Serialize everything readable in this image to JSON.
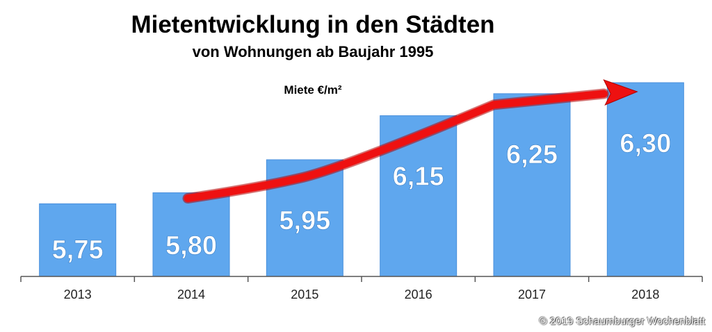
{
  "title": "Mietentwicklung in den Städten",
  "subtitle": "von Wohnungen ab Baujahr 1995",
  "unit_label": "Miete €/m²",
  "credit": "© 2019 Schaumburger Wochenblatt",
  "colors": {
    "bar": "#5fa7ee",
    "bar_edge": "#4a90dc",
    "arrow": "#ee1111",
    "label": "#ffffff",
    "axis": "#555555"
  },
  "chart_data": {
    "type": "bar",
    "categories": [
      "2013",
      "2014",
      "2015",
      "2016",
      "2017",
      "2018"
    ],
    "values": [
      5.75,
      5.8,
      5.95,
      6.15,
      6.25,
      6.3
    ],
    "value_labels": [
      "5,75",
      "5,80",
      "5,95",
      "6,15",
      "6,25",
      "6,30"
    ],
    "ylim": [
      5.42,
      6.36
    ],
    "arrow": {
      "from_category": "2014",
      "to_category": "2018",
      "direction": "rising trend"
    },
    "grid": false
  }
}
